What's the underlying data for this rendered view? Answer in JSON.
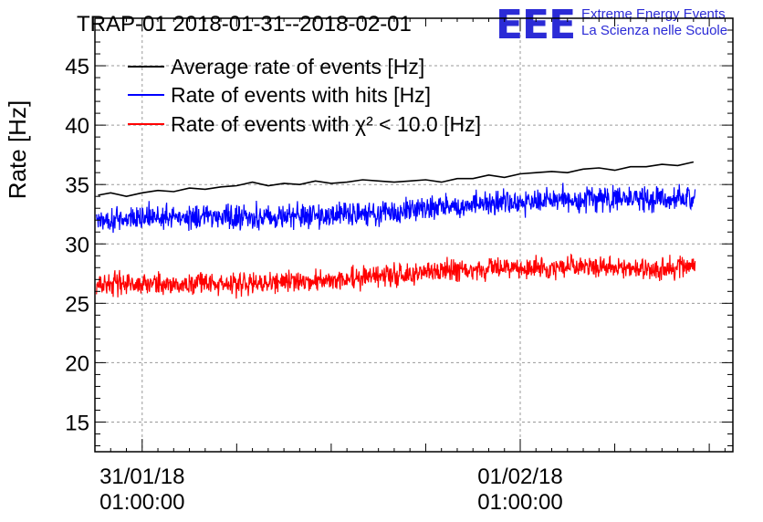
{
  "chart_data": {
    "type": "line",
    "title": "TRAP-01 2018-01-31--2018-02-01",
    "logo": {
      "mark": "EEE",
      "line1": "Extreme Energy Events",
      "line2": "La Scienza nelle Scuole",
      "color": "#2b2bd6"
    },
    "ylabel": "Rate [Hz]",
    "xlabel": "",
    "ylim": [
      12.5,
      49
    ],
    "yticks": [
      15,
      20,
      25,
      30,
      35,
      40,
      45
    ],
    "xlim_hours": [
      -3.0,
      37.5
    ],
    "xticks": [
      {
        "hours": 0,
        "date": "31/01/18",
        "time": "01:00:00"
      },
      {
        "hours": 24,
        "date": "01/02/18",
        "time": "01:00:00"
      }
    ],
    "grid": true,
    "legend_position": "top-left",
    "series": [
      {
        "name": "Average rate of events [Hz]",
        "color": "#000000",
        "x_hours": [
          -2.8,
          -2.0,
          -1.0,
          0.0,
          1.0,
          2.0,
          3.0,
          4.0,
          5.0,
          6.0,
          7.0,
          8.0,
          9.0,
          10.0,
          11.0,
          12.0,
          13.0,
          14.0,
          15.0,
          16.0,
          17.0,
          18.0,
          19.0,
          20.0,
          21.0,
          22.0,
          23.0,
          24.0,
          25.0,
          26.0,
          27.0,
          28.0,
          29.0,
          30.0,
          31.0,
          32.0,
          33.0,
          34.0,
          35.0
        ],
        "values": [
          34.1,
          34.3,
          34.0,
          34.3,
          34.5,
          34.4,
          34.7,
          34.6,
          34.8,
          34.9,
          35.2,
          34.9,
          35.1,
          35.0,
          35.3,
          35.1,
          35.2,
          35.4,
          35.3,
          35.2,
          35.3,
          35.4,
          35.2,
          35.5,
          35.5,
          35.8,
          35.6,
          35.9,
          36.0,
          36.1,
          36.0,
          36.3,
          36.4,
          36.2,
          36.5,
          36.5,
          36.7,
          36.6,
          36.9
        ]
      },
      {
        "name": "Rate of events with hits [Hz]",
        "color": "#0000ff",
        "x_range_hours": [
          -2.9,
          35.1
        ],
        "trend_start": 31.8,
        "trend_end": 34.0,
        "noise_amplitude": 1.0,
        "min": 30.0,
        "max": 36.8
      },
      {
        "name": "Rate of events with χ² < 10.0 [Hz]",
        "color": "#ff0000",
        "x_range_hours": [
          -2.9,
          35.1
        ],
        "trend_start": 26.4,
        "trend_end": 28.3,
        "noise_amplitude": 0.9,
        "min": 24.6,
        "max": 30.5
      }
    ]
  }
}
